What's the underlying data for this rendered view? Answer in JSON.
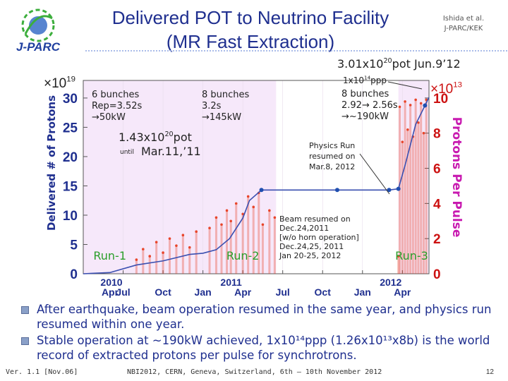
{
  "slide": {
    "title_line1": "Delivered POT to Neutrino Facility",
    "title_line2": "(MR Fast Extraction)",
    "credit_line1": "Ishida et al.",
    "credit_line2": "J-PARC/KEK",
    "logo_text": "J-PARC",
    "bullets": [
      "After earthquake, beam operation resumed in the same year, and physics run resumed within one year.",
      "Stable operation at ~190kW achieved, 1x10¹⁴ppp (1.26x10¹³x8b) is the world record of extracted protons per pulse for synchrotrons."
    ],
    "footer_version": "Ver. 1.1 [Nov.06]",
    "footer_event": "NBI2012, CERN, Geneva, Switzerland, 6th – 10th November 2012",
    "page_number": "12"
  },
  "chart_data": {
    "type": "line",
    "title": "Delivered POT to Neutrino Facility (MR Fast Extraction)",
    "ylabel_left": "Delivered # of Protons",
    "ylabel_right": "Protons Per Pulse",
    "left_axis": {
      "multiplier": "×10",
      "exponent": "19",
      "ticks": [
        0,
        5,
        10,
        15,
        20,
        25,
        30
      ],
      "ylim": [
        0,
        33
      ]
    },
    "right_axis": {
      "multiplier": "×10",
      "exponent": "13",
      "ticks": [
        0,
        2,
        4,
        6,
        8,
        10
      ],
      "ylim": [
        0,
        11
      ]
    },
    "x_years": [
      "2010",
      "2011",
      "2012"
    ],
    "x_month_labels": [
      "Apr",
      "Jul",
      "Oct",
      "Jan",
      "Apr",
      "Jul",
      "Oct",
      "Jan",
      "Apr"
    ],
    "x_range_months": [
      0,
      26
    ],
    "run_periods": [
      {
        "name": "Run-1",
        "start": 0,
        "end": 9.0
      },
      {
        "name": "Run-2",
        "start": 9.0,
        "end": 14.5
      },
      {
        "name": "Run-3",
        "start": 23.7,
        "end": 26
      }
    ],
    "series": [
      {
        "name": "Delivered # of Protons (×10^19)",
        "x": [
          0.0,
          2.0,
          4.0,
          6.0,
          8.0,
          9.0,
          10.0,
          11.0,
          12.0,
          12.5,
          13.4,
          17.0,
          20.0,
          23.0,
          23.7,
          24.2,
          25.0,
          26.0
        ],
        "y": [
          0.0,
          0.2,
          1.5,
          2.2,
          3.3,
          3.5,
          4.1,
          6.0,
          9.5,
          12.5,
          14.3,
          14.3,
          14.3,
          14.3,
          14.5,
          18.5,
          25.5,
          30.1
        ]
      }
    ],
    "markers": [
      13.4,
      19.1,
      23.0,
      23.7,
      25.7
    ],
    "ppp_run1": [
      [
        4,
        0.8
      ],
      [
        4.5,
        1.4
      ],
      [
        5,
        1.0
      ],
      [
        5.5,
        1.8
      ],
      [
        6,
        1.2
      ],
      [
        6.5,
        2.0
      ],
      [
        7,
        1.6
      ],
      [
        7.5,
        2.2
      ],
      [
        8,
        1.5
      ],
      [
        8.5,
        2.4
      ]
    ],
    "ppp_run2": [
      [
        9.5,
        2.6
      ],
      [
        10,
        3.2
      ],
      [
        10.4,
        2.8
      ],
      [
        10.8,
        3.6
      ],
      [
        11.1,
        3.0
      ],
      [
        11.5,
        4.0
      ],
      [
        12,
        3.4
      ],
      [
        12.4,
        4.4
      ],
      [
        12.8,
        3.8
      ],
      [
        13.2,
        4.6
      ],
      [
        13.5,
        2.8
      ],
      [
        14,
        3.6
      ],
      [
        14.4,
        3.2
      ]
    ],
    "ppp_run3": [
      [
        23.7,
        1.0
      ],
      [
        23.8,
        9.5
      ],
      [
        24,
        7.5
      ],
      [
        24.2,
        9.8
      ],
      [
        24.4,
        8.2
      ],
      [
        24.6,
        9.6
      ],
      [
        24.8,
        7.8
      ],
      [
        25,
        9.9
      ],
      [
        25.2,
        8.6
      ],
      [
        25.4,
        9.7
      ],
      [
        25.6,
        8.0
      ],
      [
        25.8,
        9.9
      ]
    ],
    "annotations": {
      "total": "3.01x10",
      "total_exp": "20",
      "total_suffix": "pot Jun.9’12",
      "ppp_label": "1x10",
      "ppp_exp": "14",
      "ppp_suffix": "ppp",
      "run1_cfg": [
        "6 bunches",
        "Rep=3.52s",
        "→50kW"
      ],
      "run2_cfg": [
        "8 bunches",
        "3.2s",
        "→145kW"
      ],
      "run3_cfg": [
        "8 bunches",
        "2.92→ 2.56s",
        "→~190kW"
      ],
      "until_total": "1.43x10",
      "until_exp": "20",
      "until_suffix": "pot",
      "until_word": "until",
      "until_date": "Mar.11,’11",
      "physics_run": [
        "Physics Run",
        "resumed on",
        "Mar.8, 2012"
      ],
      "beam_resumed": [
        "Beam resumed on",
        "Dec.24,2011",
        "[w/o horn operation]",
        "Dec.24,25, 2011",
        "Jan 20-25, 2012"
      ]
    },
    "colors": {
      "title": "#1f2f8f",
      "cumulative_line": "#3a4fb0",
      "ppp_points": "#e8452a",
      "run_band": "#f6e8fa",
      "run_label": "#2a9e2a",
      "annotation": "#222222",
      "axis_red": "#cc1111",
      "axis_right_label": "#c81ab0"
    }
  }
}
